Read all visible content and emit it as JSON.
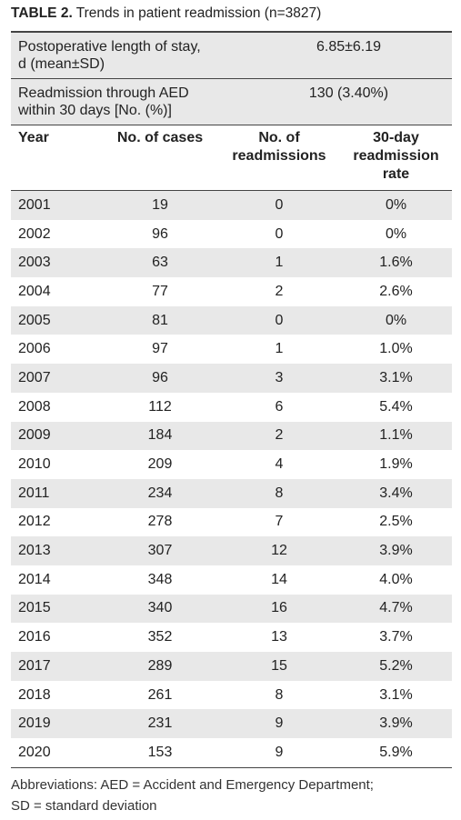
{
  "title": {
    "label": "TABLE 2.",
    "text": "Trends in patient readmission (n=3827)"
  },
  "summary": [
    {
      "label": "Postoperative length of stay, d (mean±SD)",
      "value": "6.85±6.19"
    },
    {
      "label": "Readmission through AED within 30 days [No. (%)]",
      "value": "130 (3.40%)"
    }
  ],
  "table": {
    "headers": [
      "Year",
      "No. of cases",
      "No. of readmissions",
      "30-day readmission rate"
    ],
    "rows": [
      [
        "2001",
        "19",
        "0",
        "0%"
      ],
      [
        "2002",
        "96",
        "0",
        "0%"
      ],
      [
        "2003",
        "63",
        "1",
        "1.6%"
      ],
      [
        "2004",
        "77",
        "2",
        "2.6%"
      ],
      [
        "2005",
        "81",
        "0",
        "0%"
      ],
      [
        "2006",
        "97",
        "1",
        "1.0%"
      ],
      [
        "2007",
        "96",
        "3",
        "3.1%"
      ],
      [
        "2008",
        "112",
        "6",
        "5.4%"
      ],
      [
        "2009",
        "184",
        "2",
        "1.1%"
      ],
      [
        "2010",
        "209",
        "4",
        "1.9%"
      ],
      [
        "2011",
        "234",
        "8",
        "3.4%"
      ],
      [
        "2012",
        "278",
        "7",
        "2.5%"
      ],
      [
        "2013",
        "307",
        "12",
        "3.9%"
      ],
      [
        "2014",
        "348",
        "14",
        "4.0%"
      ],
      [
        "2015",
        "340",
        "16",
        "4.7%"
      ],
      [
        "2016",
        "352",
        "13",
        "3.7%"
      ],
      [
        "2017",
        "289",
        "15",
        "5.2%"
      ],
      [
        "2018",
        "261",
        "8",
        "3.1%"
      ],
      [
        "2019",
        "231",
        "9",
        "3.9%"
      ],
      [
        "2020",
        "153",
        "9",
        "5.9%"
      ]
    ]
  },
  "footnote": [
    "Abbreviations: AED = Accident and Emergency Department;",
    "SD = standard deviation"
  ]
}
